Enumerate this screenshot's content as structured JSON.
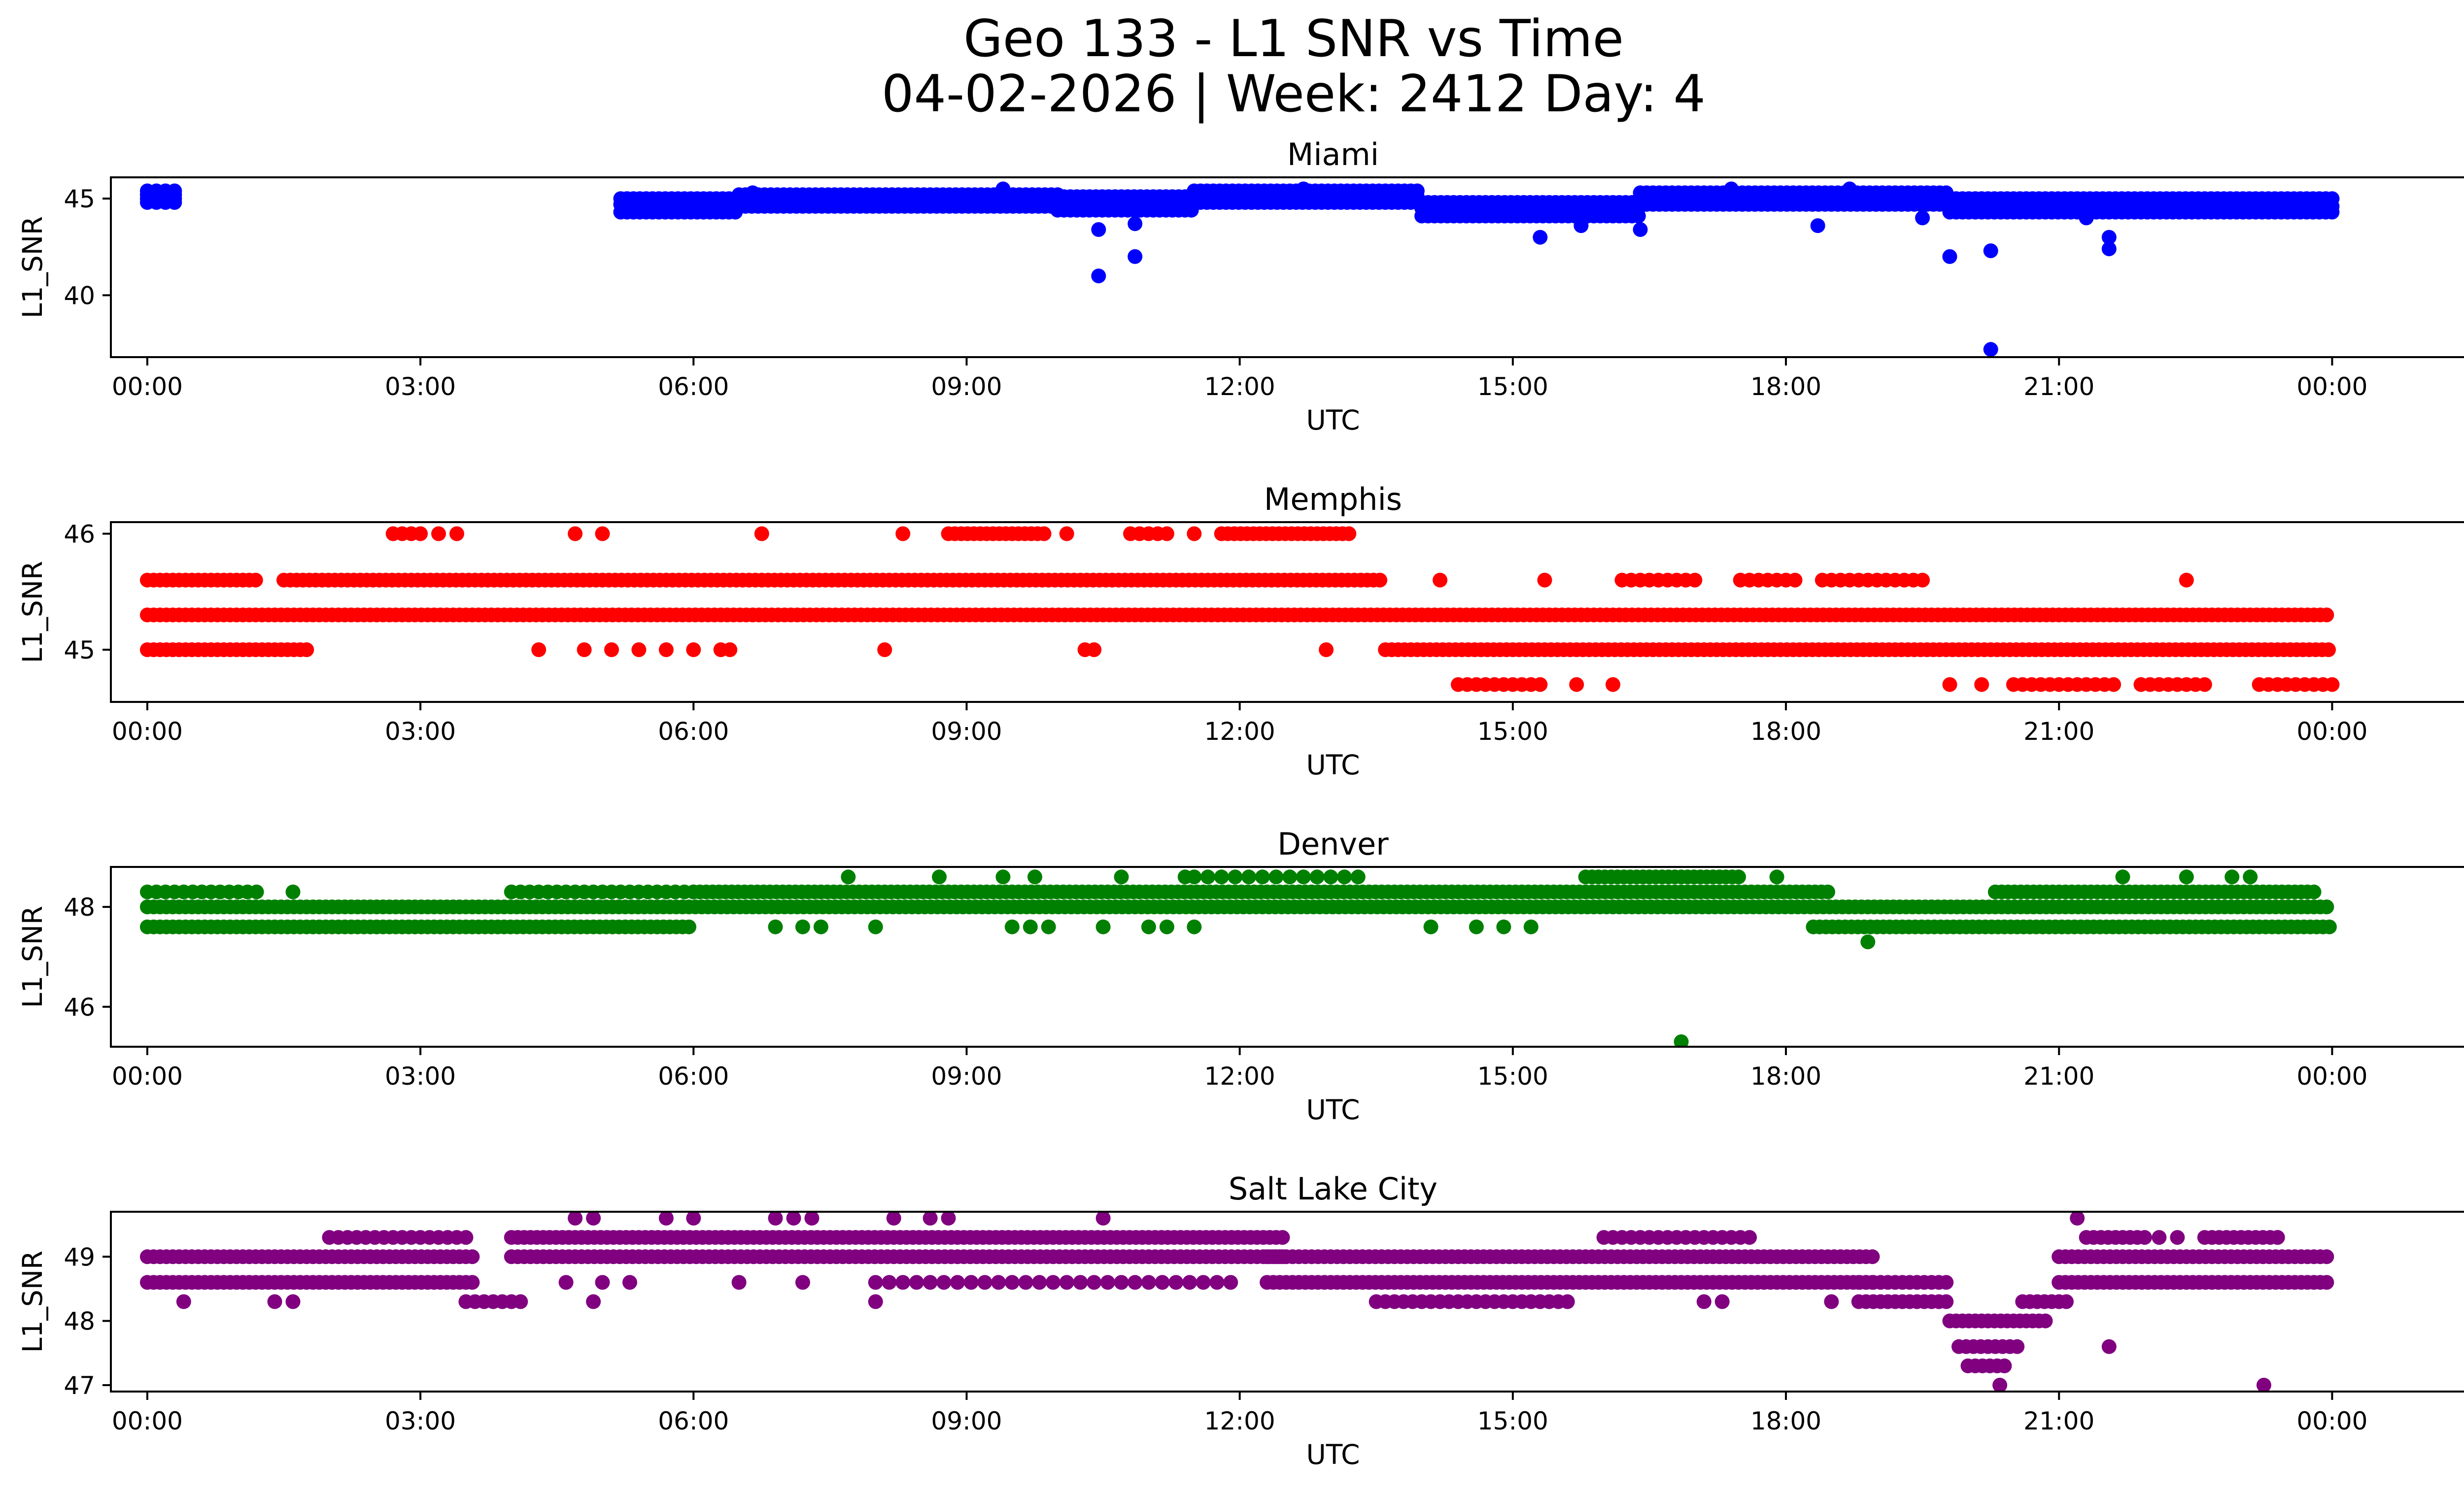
{
  "title_line1": "Geo 133 - L1 SNR vs Time",
  "title_line2": "04-02-2026 | Week: 2412 Day: 4",
  "chart_data": [
    {
      "type": "scatter",
      "title": "Miami",
      "color": "#0000ff",
      "xlabel": "UTC",
      "ylabel": "L1_SNR",
      "xlim": [
        -0.4,
        26.45
      ],
      "ylim": [
        36.8,
        46.1
      ],
      "xticks": [
        0,
        3,
        6,
        9,
        12,
        15,
        18,
        21,
        24
      ],
      "xtick_labels": [
        "00:00",
        "03:00",
        "06:00",
        "09:00",
        "12:00",
        "15:00",
        "18:00",
        "21:00",
        "00:00"
      ],
      "yticks": [
        40,
        45
      ],
      "bands": [
        {
          "x_start": 0.0,
          "x_end": 0.3,
          "ys": [
            44.8,
            45.0,
            45.2,
            45.4
          ],
          "step": 0.1
        },
        {
          "x_start": 5.2,
          "x_end": 6.5,
          "ys": [
            44.3,
            44.7,
            45.0
          ],
          "step": 0.07
        },
        {
          "x_start": 6.5,
          "x_end": 10.0,
          "ys": [
            44.6,
            45.0,
            45.2
          ],
          "step": 0.07
        },
        {
          "x_start": 10.0,
          "x_end": 11.5,
          "ys": [
            44.4,
            44.8,
            45.1
          ],
          "step": 0.07
        },
        {
          "x_start": 11.5,
          "x_end": 14.0,
          "ys": [
            44.8,
            45.1,
            45.4
          ],
          "step": 0.07
        },
        {
          "x_start": 14.0,
          "x_end": 16.4,
          "ys": [
            44.1,
            44.5,
            44.8
          ],
          "step": 0.07
        },
        {
          "x_start": 16.4,
          "x_end": 19.8,
          "ys": [
            44.7,
            45.0,
            45.3
          ],
          "step": 0.07
        },
        {
          "x_start": 19.8,
          "x_end": 24.0,
          "ys": [
            44.3,
            44.6,
            45.0
          ],
          "step": 0.07
        }
      ],
      "points": [
        {
          "x": 10.45,
          "y": 41.0
        },
        {
          "x": 10.45,
          "y": 43.4
        },
        {
          "x": 10.85,
          "y": 42.0
        },
        {
          "x": 10.85,
          "y": 43.7
        },
        {
          "x": 15.3,
          "y": 43.0
        },
        {
          "x": 15.75,
          "y": 43.6
        },
        {
          "x": 16.4,
          "y": 43.4
        },
        {
          "x": 18.35,
          "y": 43.6
        },
        {
          "x": 19.5,
          "y": 44.0
        },
        {
          "x": 19.8,
          "y": 42.0
        },
        {
          "x": 20.25,
          "y": 42.3
        },
        {
          "x": 20.25,
          "y": 37.2
        },
        {
          "x": 21.55,
          "y": 42.4
        },
        {
          "x": 21.55,
          "y": 43.0
        },
        {
          "x": 21.3,
          "y": 44.0
        },
        {
          "x": 12.7,
          "y": 45.5
        },
        {
          "x": 9.4,
          "y": 45.5
        },
        {
          "x": 17.4,
          "y": 45.5
        },
        {
          "x": 18.7,
          "y": 45.5
        },
        {
          "x": 6.65,
          "y": 45.3
        }
      ]
    },
    {
      "type": "scatter",
      "title": "Memphis",
      "color": "#ff0000",
      "xlabel": "UTC",
      "ylabel": "L1_SNR",
      "xlim": [
        -0.4,
        26.45
      ],
      "ylim": [
        44.55,
        46.1
      ],
      "xticks": [
        0,
        3,
        6,
        9,
        12,
        15,
        18,
        21,
        24
      ],
      "xtick_labels": [
        "00:00",
        "03:00",
        "06:00",
        "09:00",
        "12:00",
        "15:00",
        "18:00",
        "21:00",
        "00:00"
      ],
      "yticks": [
        45,
        46
      ],
      "bands": [
        {
          "x_start": 0.0,
          "x_end": 24.0,
          "ys": [
            45.3
          ],
          "step": 0.07
        },
        {
          "x_start": 0.0,
          "x_end": 1.2,
          "ys": [
            45.6
          ],
          "step": 0.07
        },
        {
          "x_start": 1.5,
          "x_end": 13.6,
          "ys": [
            45.6
          ],
          "step": 0.07
        },
        {
          "x_start": 0.0,
          "x_end": 1.8,
          "ys": [
            45.0
          ],
          "step": 0.07
        },
        {
          "x_start": 13.6,
          "x_end": 24.0,
          "ys": [
            45.0
          ],
          "step": 0.07
        },
        {
          "x_start": 16.2,
          "x_end": 17.0,
          "ys": [
            45.6
          ],
          "step": 0.1
        },
        {
          "x_start": 17.5,
          "x_end": 18.1,
          "ys": [
            45.6
          ],
          "step": 0.1
        },
        {
          "x_start": 18.4,
          "x_end": 19.5,
          "ys": [
            45.6
          ],
          "step": 0.1
        },
        {
          "x_start": 14.4,
          "x_end": 15.3,
          "ys": [
            44.7
          ],
          "step": 0.1
        },
        {
          "x_start": 20.5,
          "x_end": 21.6,
          "ys": [
            44.7
          ],
          "step": 0.1
        },
        {
          "x_start": 21.9,
          "x_end": 22.6,
          "ys": [
            44.7
          ],
          "step": 0.1
        },
        {
          "x_start": 23.2,
          "x_end": 24.0,
          "ys": [
            44.7
          ],
          "step": 0.1
        },
        {
          "x_start": 2.7,
          "x_end": 3.0,
          "ys": [
            46.0
          ],
          "step": 0.1
        },
        {
          "x_start": 8.8,
          "x_end": 9.9,
          "ys": [
            46.0
          ],
          "step": 0.07
        },
        {
          "x_start": 10.8,
          "x_end": 11.2,
          "ys": [
            46.0
          ],
          "step": 0.1
        },
        {
          "x_start": 11.8,
          "x_end": 13.2,
          "ys": [
            46.0
          ],
          "step": 0.07
        }
      ],
      "points": [
        {
          "x": 4.3,
          "y": 45.0
        },
        {
          "x": 4.8,
          "y": 45.0
        },
        {
          "x": 5.1,
          "y": 45.0
        },
        {
          "x": 5.4,
          "y": 45.0
        },
        {
          "x": 5.7,
          "y": 45.0
        },
        {
          "x": 6.0,
          "y": 45.0
        },
        {
          "x": 6.3,
          "y": 45.0
        },
        {
          "x": 6.4,
          "y": 45.0
        },
        {
          "x": 8.1,
          "y": 45.0
        },
        {
          "x": 10.3,
          "y": 45.0
        },
        {
          "x": 10.4,
          "y": 45.0
        },
        {
          "x": 12.95,
          "y": 45.0
        },
        {
          "x": 4.7,
          "y": 46.0
        },
        {
          "x": 5.0,
          "y": 46.0
        },
        {
          "x": 3.2,
          "y": 46.0
        },
        {
          "x": 3.4,
          "y": 46.0
        },
        {
          "x": 6.75,
          "y": 46.0
        },
        {
          "x": 8.3,
          "y": 46.0
        },
        {
          "x": 10.1,
          "y": 46.0
        },
        {
          "x": 11.5,
          "y": 46.0
        },
        {
          "x": 15.35,
          "y": 45.6
        },
        {
          "x": 15.7,
          "y": 44.7
        },
        {
          "x": 16.1,
          "y": 44.7
        },
        {
          "x": 19.8,
          "y": 44.7
        },
        {
          "x": 20.15,
          "y": 44.7
        },
        {
          "x": 22.4,
          "y": 45.6
        },
        {
          "x": 14.2,
          "y": 45.6
        }
      ]
    },
    {
      "type": "scatter",
      "title": "Denver",
      "color": "#008000",
      "xlabel": "UTC",
      "ylabel": "L1_SNR",
      "xlim": [
        -0.4,
        26.45
      ],
      "ylim": [
        45.2,
        48.8
      ],
      "xticks": [
        0,
        3,
        6,
        9,
        12,
        15,
        18,
        21,
        24
      ],
      "xtick_labels": [
        "00:00",
        "03:00",
        "06:00",
        "09:00",
        "12:00",
        "15:00",
        "18:00",
        "21:00",
        "00:00"
      ],
      "yticks": [
        46,
        48
      ],
      "bands": [
        {
          "x_start": 0.0,
          "x_end": 24.0,
          "ys": [
            48.0
          ],
          "step": 0.07
        },
        {
          "x_start": 0.0,
          "x_end": 6.0,
          "ys": [
            47.6
          ],
          "step": 0.07
        },
        {
          "x_start": 0.0,
          "x_end": 1.2,
          "ys": [
            48.3
          ],
          "step": 0.1
        },
        {
          "x_start": 4.0,
          "x_end": 6.0,
          "ys": [
            48.3
          ],
          "step": 0.1
        },
        {
          "x_start": 6.0,
          "x_end": 18.5,
          "ys": [
            48.3
          ],
          "step": 0.07
        },
        {
          "x_start": 15.8,
          "x_end": 17.5,
          "ys": [
            48.6
          ],
          "step": 0.07
        },
        {
          "x_start": 11.5,
          "x_end": 13.4,
          "ys": [
            48.6
          ],
          "step": 0.15
        },
        {
          "x_start": 18.3,
          "x_end": 24.0,
          "ys": [
            47.6
          ],
          "step": 0.07
        },
        {
          "x_start": 20.3,
          "x_end": 23.8,
          "ys": [
            48.3
          ],
          "step": 0.07
        }
      ],
      "points": [
        {
          "x": 1.6,
          "y": 48.3
        },
        {
          "x": 6.9,
          "y": 47.6
        },
        {
          "x": 7.2,
          "y": 47.6
        },
        {
          "x": 7.4,
          "y": 47.6
        },
        {
          "x": 8.0,
          "y": 47.6
        },
        {
          "x": 9.5,
          "y": 47.6
        },
        {
          "x": 9.7,
          "y": 47.6
        },
        {
          "x": 9.9,
          "y": 47.6
        },
        {
          "x": 10.5,
          "y": 47.6
        },
        {
          "x": 11.0,
          "y": 47.6
        },
        {
          "x": 11.2,
          "y": 47.6
        },
        {
          "x": 11.5,
          "y": 47.6
        },
        {
          "x": 14.1,
          "y": 47.6
        },
        {
          "x": 14.6,
          "y": 47.6
        },
        {
          "x": 14.9,
          "y": 47.6
        },
        {
          "x": 15.2,
          "y": 47.6
        },
        {
          "x": 7.7,
          "y": 48.6
        },
        {
          "x": 8.7,
          "y": 48.6
        },
        {
          "x": 9.4,
          "y": 48.6
        },
        {
          "x": 9.75,
          "y": 48.6
        },
        {
          "x": 10.7,
          "y": 48.6
        },
        {
          "x": 11.4,
          "y": 48.6
        },
        {
          "x": 16.85,
          "y": 45.3
        },
        {
          "x": 18.9,
          "y": 47.3
        },
        {
          "x": 17.9,
          "y": 48.6
        },
        {
          "x": 21.7,
          "y": 48.6
        },
        {
          "x": 22.4,
          "y": 48.6
        },
        {
          "x": 22.9,
          "y": 48.6
        },
        {
          "x": 23.1,
          "y": 48.6
        }
      ]
    },
    {
      "type": "scatter",
      "title": "Salt Lake City",
      "color": "#800080",
      "xlabel": "UTC",
      "ylabel": "L1_SNR",
      "xlim": [
        -0.4,
        26.45
      ],
      "ylim": [
        46.9,
        49.7
      ],
      "xticks": [
        0,
        3,
        6,
        9,
        12,
        15,
        18,
        21,
        24
      ],
      "xtick_labels": [
        "00:00",
        "03:00",
        "06:00",
        "09:00",
        "12:00",
        "15:00",
        "18:00",
        "21:00",
        "00:00"
      ],
      "yticks": [
        47,
        48,
        49
      ],
      "bands": [
        {
          "x_start": 0.0,
          "x_end": 3.6,
          "ys": [
            48.6,
            49.0
          ],
          "step": 0.07
        },
        {
          "x_start": 2.0,
          "x_end": 3.5,
          "ys": [
            49.3
          ],
          "step": 0.1
        },
        {
          "x_start": 3.5,
          "x_end": 4.1,
          "ys": [
            48.3
          ],
          "step": 0.1
        },
        {
          "x_start": 4.0,
          "x_end": 12.5,
          "ys": [
            49.0,
            49.3
          ],
          "step": 0.07
        },
        {
          "x_start": 8.0,
          "x_end": 12.0,
          "ys": [
            48.6
          ],
          "step": 0.15
        },
        {
          "x_start": 12.3,
          "x_end": 19.0,
          "ys": [
            48.6,
            49.0
          ],
          "step": 0.07
        },
        {
          "x_start": 13.5,
          "x_end": 15.6,
          "ys": [
            48.3
          ],
          "step": 0.1
        },
        {
          "x_start": 16.0,
          "x_end": 17.6,
          "ys": [
            49.3
          ],
          "step": 0.1
        },
        {
          "x_start": 18.8,
          "x_end": 19.8,
          "ys": [
            48.3,
            48.6
          ],
          "step": 0.08
        },
        {
          "x_start": 19.8,
          "x_end": 20.9,
          "ys": [
            48.0
          ],
          "step": 0.07
        },
        {
          "x_start": 19.9,
          "x_end": 20.6,
          "ys": [
            47.6
          ],
          "step": 0.08
        },
        {
          "x_start": 20.0,
          "x_end": 20.4,
          "ys": [
            47.3
          ],
          "step": 0.08
        },
        {
          "x_start": 20.6,
          "x_end": 21.1,
          "ys": [
            48.3
          ],
          "step": 0.08
        },
        {
          "x_start": 21.0,
          "x_end": 24.0,
          "ys": [
            48.6,
            49.0
          ],
          "step": 0.07
        },
        {
          "x_start": 21.3,
          "x_end": 22.0,
          "ys": [
            49.3
          ],
          "step": 0.08
        },
        {
          "x_start": 22.6,
          "x_end": 23.4,
          "ys": [
            49.3
          ],
          "step": 0.08
        }
      ],
      "points": [
        {
          "x": 0.4,
          "y": 48.3
        },
        {
          "x": 1.4,
          "y": 48.3
        },
        {
          "x": 1.6,
          "y": 48.3
        },
        {
          "x": 4.6,
          "y": 48.6
        },
        {
          "x": 5.0,
          "y": 48.6
        },
        {
          "x": 4.9,
          "y": 48.3
        },
        {
          "x": 5.3,
          "y": 48.6
        },
        {
          "x": 4.7,
          "y": 49.6
        },
        {
          "x": 4.9,
          "y": 49.6
        },
        {
          "x": 5.7,
          "y": 49.6
        },
        {
          "x": 6.0,
          "y": 49.6
        },
        {
          "x": 6.9,
          "y": 49.6
        },
        {
          "x": 7.1,
          "y": 49.6
        },
        {
          "x": 7.3,
          "y": 49.6
        },
        {
          "x": 8.2,
          "y": 49.6
        },
        {
          "x": 8.6,
          "y": 49.6
        },
        {
          "x": 8.8,
          "y": 49.6
        },
        {
          "x": 10.5,
          "y": 49.6
        },
        {
          "x": 8.0,
          "y": 48.3
        },
        {
          "x": 17.1,
          "y": 48.3
        },
        {
          "x": 17.3,
          "y": 48.3
        },
        {
          "x": 18.5,
          "y": 48.3
        },
        {
          "x": 20.35,
          "y": 47.0
        },
        {
          "x": 21.55,
          "y": 47.6
        },
        {
          "x": 21.2,
          "y": 49.6
        },
        {
          "x": 22.1,
          "y": 49.3
        },
        {
          "x": 22.3,
          "y": 49.3
        },
        {
          "x": 23.25,
          "y": 47.0
        },
        {
          "x": 23.4,
          "y": 49.3
        },
        {
          "x": 6.5,
          "y": 48.6
        },
        {
          "x": 7.2,
          "y": 48.6
        }
      ]
    }
  ]
}
